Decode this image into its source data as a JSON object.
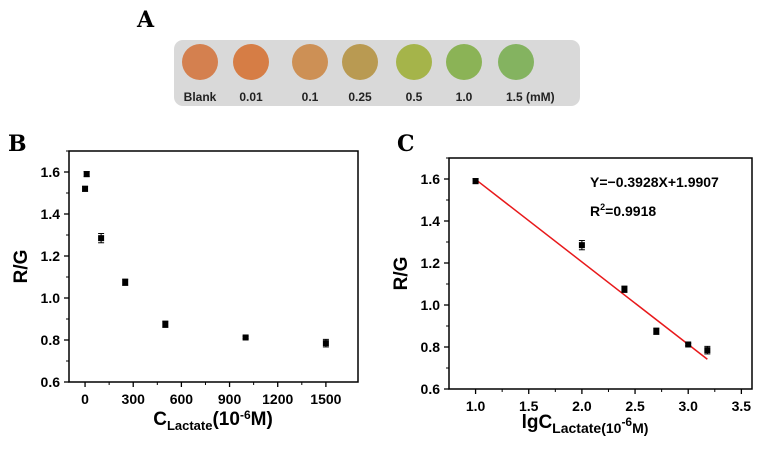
{
  "panel_a": {
    "label": "A",
    "swatches": [
      {
        "label": "Blank",
        "color": "#D4804F"
      },
      {
        "label": "0.01",
        "color": "#D67D45"
      },
      {
        "label": "0.1",
        "color": "#CD9055"
      },
      {
        "label": "0.25",
        "color": "#B99A52"
      },
      {
        "label": "0.5",
        "color": "#A5B44A"
      },
      {
        "label": "1.0",
        "color": "#8BB356"
      },
      {
        "label": "1.5 (mM)",
        "color": "#84B360"
      }
    ]
  },
  "chart_data": [
    {
      "panel": "B",
      "type": "scatter",
      "xlabel": "C",
      "xlabel_sub": "Lactate",
      "xlabel_tail": "(10",
      "xlabel_sup": "-6",
      "xlabel_end": "M)",
      "ylabel": "R/G",
      "xlim": [
        -100,
        1700
      ],
      "ylim": [
        0.6,
        1.7
      ],
      "xticks": [
        "0",
        "300",
        "600",
        "900",
        "1200",
        "1500"
      ],
      "xtick_values": [
        0,
        300,
        600,
        900,
        1200,
        1500
      ],
      "yticks": [
        "0.6",
        "0.8",
        "1.0",
        "1.2",
        "1.4",
        "1.6"
      ],
      "ytick_values": [
        0.6,
        0.8,
        1.0,
        1.2,
        1.4,
        1.6
      ],
      "x": [
        0,
        10,
        100,
        250,
        500,
        1000,
        1500
      ],
      "y": [
        1.52,
        1.59,
        1.285,
        1.075,
        0.875,
        0.812,
        0.785
      ],
      "err": [
        0.012,
        0.012,
        0.022,
        0.015,
        0.015,
        0.006,
        0.018
      ]
    },
    {
      "panel": "C",
      "type": "scatter",
      "xlabel": "lgC",
      "xlabel_sub": "Lactate(10",
      "xlabel_sup": "-6",
      "xlabel_end": "M)",
      "ylabel": "R/G",
      "xlim": [
        0.75,
        3.6
      ],
      "ylim": [
        0.6,
        1.7
      ],
      "xticks": [
        "1.0",
        "1.5",
        "2.0",
        "2.5",
        "3.0",
        "3.5"
      ],
      "xtick_values": [
        1.0,
        1.5,
        2.0,
        2.5,
        3.0,
        3.5
      ],
      "yticks": [
        "0.6",
        "0.8",
        "1.0",
        "1.2",
        "1.4",
        "1.6"
      ],
      "ytick_values": [
        0.6,
        0.8,
        1.0,
        1.2,
        1.4,
        1.6
      ],
      "x": [
        1.0,
        2.0,
        2.4,
        2.7,
        3.0,
        3.18
      ],
      "y": [
        1.59,
        1.285,
        1.075,
        0.875,
        0.812,
        0.785
      ],
      "err": [
        0.012,
        0.022,
        0.015,
        0.015,
        0.006,
        0.018
      ],
      "fit": {
        "slope": -0.3928,
        "intercept": 1.9907,
        "x_range": [
          1.0,
          3.18
        ],
        "color": "#E8191B"
      },
      "annotations": {
        "equation": "Y=−0.3928X+1.9907",
        "r2_label": "R",
        "r2_sup": "2",
        "r2_value": "=0.9918"
      }
    }
  ]
}
